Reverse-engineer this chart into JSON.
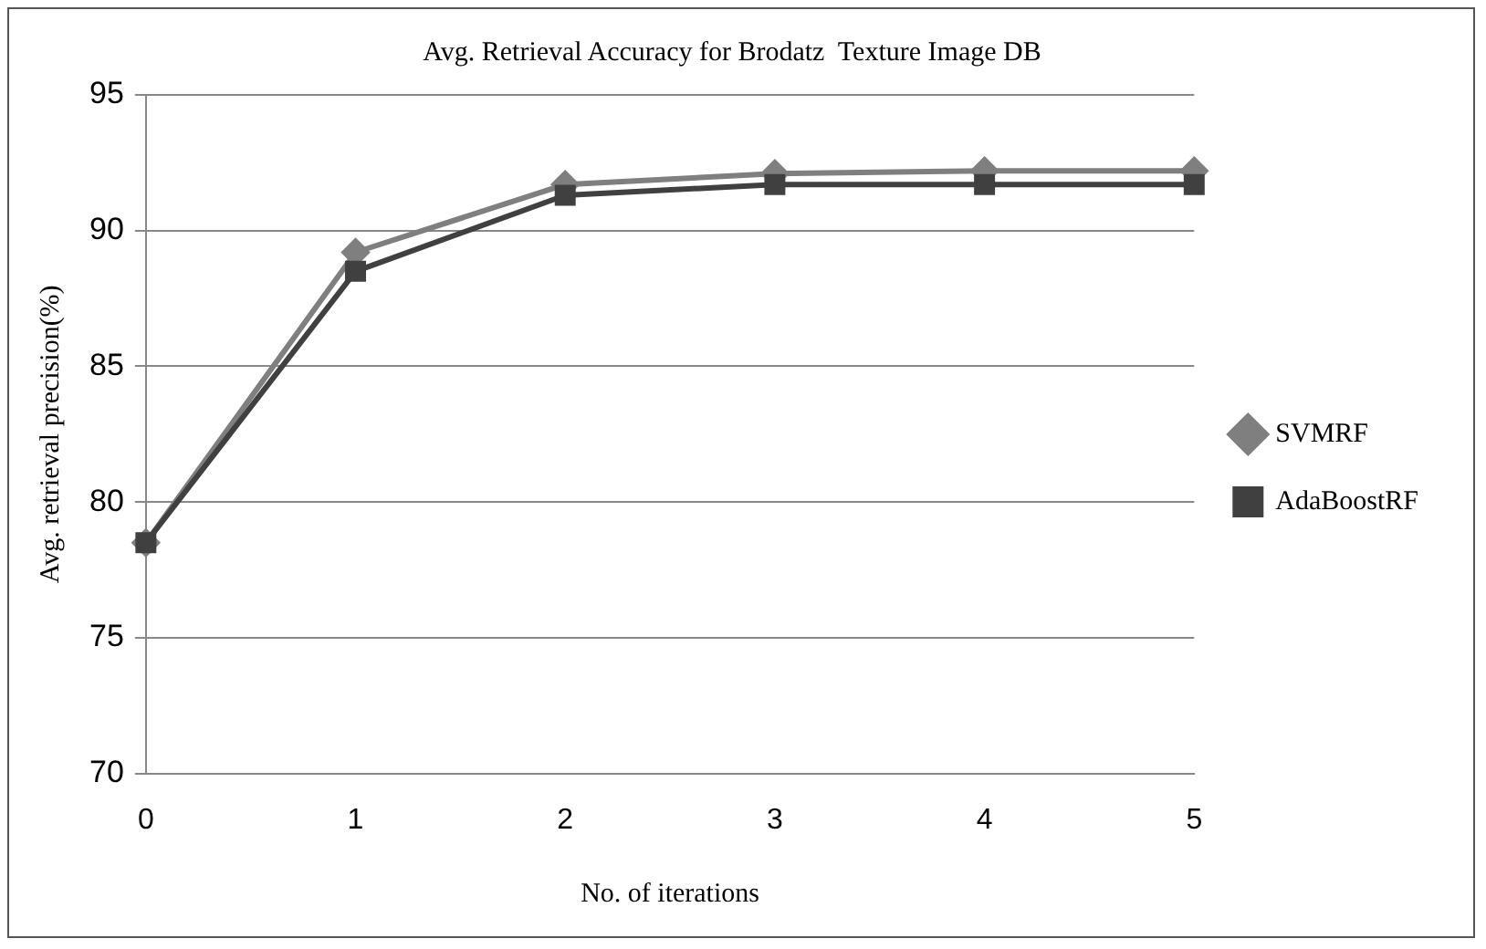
{
  "chart_data": {
    "type": "line",
    "title": "Avg. Retrieval Accuracy for Brodatz  Texture Image DB",
    "xlabel": "No. of iterations",
    "ylabel": "Avg. retrieval precision(%)",
    "categories": [
      "0",
      "1",
      "2",
      "3",
      "4",
      "5"
    ],
    "ylim": [
      70,
      95
    ],
    "yticks": [
      70,
      75,
      80,
      85,
      90,
      95
    ],
    "grid": "y",
    "legend": "right",
    "line_style": "solid",
    "series": [
      {
        "name": "SVMRF",
        "color": "#7f7f7f",
        "marker": "diamond",
        "values": [
          78.5,
          89.2,
          91.7,
          92.1,
          92.2,
          92.2
        ]
      },
      {
        "name": "AdaBoostRF",
        "color": "#404040",
        "marker": "square",
        "values": [
          78.5,
          88.5,
          91.3,
          91.7,
          91.7,
          91.7
        ]
      }
    ]
  }
}
